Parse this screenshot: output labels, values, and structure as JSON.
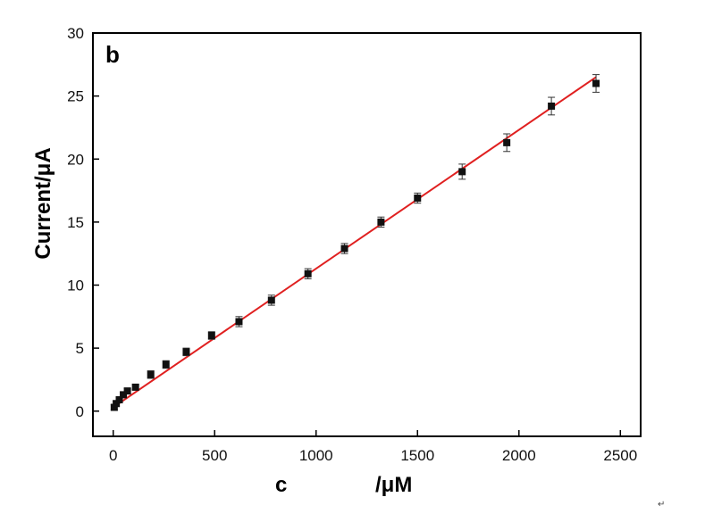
{
  "chart_data": {
    "type": "scatter",
    "panel_label": "b",
    "xlabel_left": "c",
    "xlabel_right": "/μM",
    "ylabel": "Current/μA",
    "xlim": [
      -100,
      2600
    ],
    "ylim": [
      -2,
      30
    ],
    "xticks": [
      0,
      500,
      1000,
      1500,
      2000,
      2500
    ],
    "yticks": [
      0,
      5,
      10,
      15,
      20,
      25,
      30
    ],
    "grid": false,
    "fit_line": {
      "color": "#e02020",
      "x": [
        0,
        2380
      ],
      "y": [
        0.3,
        26.5
      ]
    },
    "marker_color": "#111111",
    "points": [
      {
        "x": 5,
        "y": 0.3,
        "err": 0.2
      },
      {
        "x": 15,
        "y": 0.6,
        "err": 0.2
      },
      {
        "x": 30,
        "y": 0.9,
        "err": 0.2
      },
      {
        "x": 50,
        "y": 1.3,
        "err": 0.2
      },
      {
        "x": 70,
        "y": 1.6,
        "err": 0.2
      },
      {
        "x": 110,
        "y": 1.9,
        "err": 0.2
      },
      {
        "x": 185,
        "y": 2.9,
        "err": 0.3
      },
      {
        "x": 260,
        "y": 3.7,
        "err": 0.3
      },
      {
        "x": 360,
        "y": 4.7,
        "err": 0.3
      },
      {
        "x": 485,
        "y": 6.0,
        "err": 0.3
      },
      {
        "x": 620,
        "y": 7.1,
        "err": 0.4
      },
      {
        "x": 780,
        "y": 8.8,
        "err": 0.4
      },
      {
        "x": 960,
        "y": 10.9,
        "err": 0.4
      },
      {
        "x": 1140,
        "y": 12.9,
        "err": 0.4
      },
      {
        "x": 1320,
        "y": 15.0,
        "err": 0.4
      },
      {
        "x": 1500,
        "y": 16.9,
        "err": 0.4
      },
      {
        "x": 1720,
        "y": 19.0,
        "err": 0.6
      },
      {
        "x": 1940,
        "y": 21.3,
        "err": 0.7
      },
      {
        "x": 2160,
        "y": 24.2,
        "err": 0.7
      },
      {
        "x": 2380,
        "y": 26.0,
        "err": 0.7
      }
    ]
  },
  "corner_mark": "↵"
}
